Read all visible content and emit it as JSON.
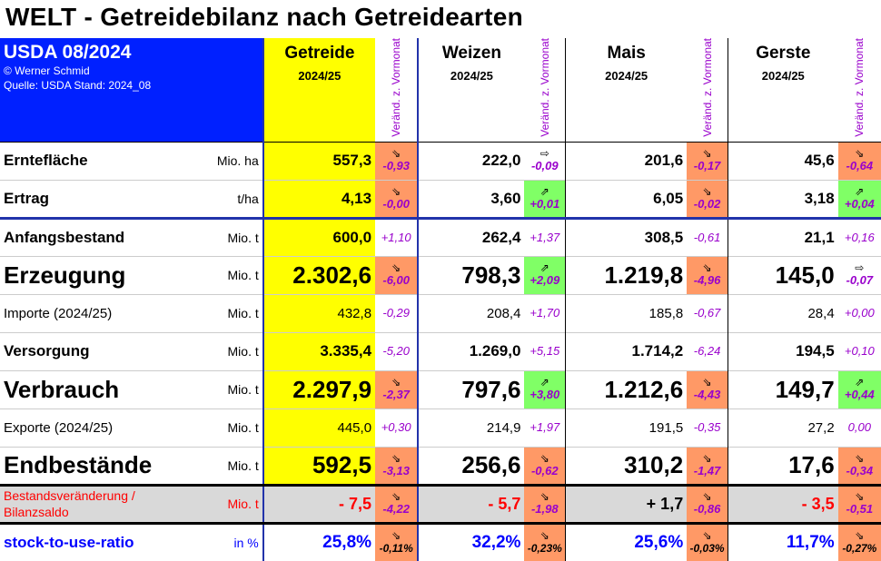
{
  "title": "WELT - Getreidebilanz nach Getreidearten",
  "header": {
    "source_title": "USDA 08/2024",
    "copyright": "© Werner Schmid",
    "source_line": "Quelle: USDA  Stand: 2024_08",
    "change_label": "Veränd. z. Vormonat",
    "groups": [
      {
        "name": "Getreide",
        "year": "2024/25"
      },
      {
        "name": "Weizen",
        "year": "2024/25"
      },
      {
        "name": "Mais",
        "year": "2024/25"
      },
      {
        "name": "Gerste",
        "year": "2024/25"
      }
    ]
  },
  "rows": [
    {
      "label": "Erntefläche",
      "unit": "Mio. ha",
      "cells": [
        {
          "value": "557,3",
          "arrow": "⇘",
          "change": "-0,93"
        },
        {
          "value": "222,0",
          "arrow": "⇨",
          "change": "-0,09"
        },
        {
          "value": "201,6",
          "arrow": "⇘",
          "change": "-0,17"
        },
        {
          "value": "45,6",
          "arrow": "⇘",
          "change": "-0,64"
        }
      ]
    },
    {
      "label": "Ertrag",
      "unit": "t/ha",
      "cells": [
        {
          "value": "4,13",
          "arrow": "⇘",
          "change": "-0,00"
        },
        {
          "value": "3,60",
          "arrow": "⇗",
          "change": "+0,01"
        },
        {
          "value": "6,05",
          "arrow": "⇘",
          "change": "-0,02"
        },
        {
          "value": "3,18",
          "arrow": "⇗",
          "change": "+0,04"
        }
      ]
    },
    {
      "label": "Anfangsbestand",
      "unit": "Mio. t",
      "cells": [
        {
          "value": "600,0",
          "arrow": "",
          "change": "+1,10"
        },
        {
          "value": "262,4",
          "arrow": "",
          "change": "+1,37"
        },
        {
          "value": "308,5",
          "arrow": "",
          "change": "-0,61"
        },
        {
          "value": "21,1",
          "arrow": "",
          "change": "+0,16"
        }
      ]
    },
    {
      "label": "Erzeugung",
      "unit": "Mio. t",
      "cells": [
        {
          "value": "2.302,6",
          "arrow": "⇘",
          "change": "-6,00"
        },
        {
          "value": "798,3",
          "arrow": "⇗",
          "change": "+2,09"
        },
        {
          "value": "1.219,8",
          "arrow": "⇘",
          "change": "-4,96"
        },
        {
          "value": "145,0",
          "arrow": "⇨",
          "change": "-0,07"
        }
      ]
    },
    {
      "label": "Importe  (2024/25)",
      "unit": "Mio. t",
      "cells": [
        {
          "value": "432,8",
          "arrow": "",
          "change": "-0,29"
        },
        {
          "value": "208,4",
          "arrow": "",
          "change": "+1,70"
        },
        {
          "value": "185,8",
          "arrow": "",
          "change": "-0,67"
        },
        {
          "value": "28,4",
          "arrow": "",
          "change": "+0,00"
        }
      ]
    },
    {
      "label": "Versorgung",
      "unit": "Mio. t",
      "cells": [
        {
          "value": "3.335,4",
          "arrow": "",
          "change": "-5,20"
        },
        {
          "value": "1.269,0",
          "arrow": "",
          "change": "+5,15"
        },
        {
          "value": "1.714,2",
          "arrow": "",
          "change": "-6,24"
        },
        {
          "value": "194,5",
          "arrow": "",
          "change": "+0,10"
        }
      ]
    },
    {
      "label": "Verbrauch",
      "unit": "Mio. t",
      "cells": [
        {
          "value": "2.297,9",
          "arrow": "⇘",
          "change": "-2,37"
        },
        {
          "value": "797,6",
          "arrow": "⇗",
          "change": "+3,80"
        },
        {
          "value": "1.212,6",
          "arrow": "⇘",
          "change": "-4,43"
        },
        {
          "value": "149,7",
          "arrow": "⇗",
          "change": "+0,44"
        }
      ]
    },
    {
      "label": "Exporte  (2024/25)",
      "unit": "Mio. t",
      "cells": [
        {
          "value": "445,0",
          "arrow": "",
          "change": "+0,30"
        },
        {
          "value": "214,9",
          "arrow": "",
          "change": "+1,97"
        },
        {
          "value": "191,5",
          "arrow": "",
          "change": "-0,35"
        },
        {
          "value": "27,2",
          "arrow": "",
          "change": "0,00"
        }
      ]
    },
    {
      "label": "Endbestände",
      "unit": "Mio. t",
      "cells": [
        {
          "value": "592,5",
          "arrow": "⇘",
          "change": "-3,13"
        },
        {
          "value": "256,6",
          "arrow": "⇘",
          "change": "-0,62"
        },
        {
          "value": "310,2",
          "arrow": "⇘",
          "change": "-1,47"
        },
        {
          "value": "17,6",
          "arrow": "⇘",
          "change": "-0,34"
        }
      ]
    },
    {
      "label": "Bestandsveränderung /",
      "label2": "Bilanzsaldo",
      "unit": "Mio. t",
      "cells": [
        {
          "value": "- 7,5",
          "arrow": "⇘",
          "change": "-4,22"
        },
        {
          "value": "- 5,7",
          "arrow": "⇘",
          "change": "-1,98"
        },
        {
          "value": "+ 1,7",
          "arrow": "⇘",
          "change": "-0,86"
        },
        {
          "value": "- 3,5",
          "arrow": "⇘",
          "change": "-0,51"
        }
      ]
    },
    {
      "label": "stock-to-use-ratio",
      "unit": "in %",
      "cells": [
        {
          "value": "25,8%",
          "arrow": "⇘",
          "change": "-0,11%"
        },
        {
          "value": "32,2%",
          "arrow": "⇘",
          "change": "-0,23%"
        },
        {
          "value": "25,6%",
          "arrow": "⇘",
          "change": "-0,03%"
        },
        {
          "value": "11,7%",
          "arrow": "⇘",
          "change": "-0,27%"
        }
      ]
    }
  ],
  "colors": {
    "header_blue": "#0020ff",
    "getreide_yellow": "#ffff00",
    "decrease_orange": "#ff9966",
    "increase_green": "#80ff66",
    "saldo_gray": "#d9d9d9",
    "change_purple": "#9900cc",
    "saldo_red": "#ff0000",
    "ratio_blue": "#0000ff"
  }
}
